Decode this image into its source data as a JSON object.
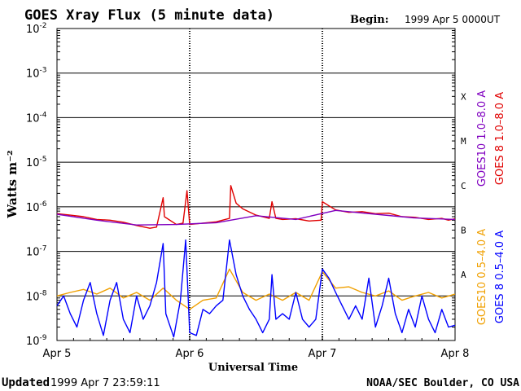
{
  "header": {
    "title": "GOES Xray Flux (5 minute data)",
    "begin_label": "Begin:",
    "begin_value": "1999 Apr 5 0000UT"
  },
  "footer": {
    "updated_label": "Updated",
    "updated_value": "1999 Apr  7 23:59:11",
    "credit": "NOAA/SEC Boulder, CO USA"
  },
  "colors": {
    "goes10_long": "#8000c0",
    "goes8_long": "#e00000",
    "goes10_short": "#f0a000",
    "goes8_short": "#0000ff",
    "axis": "#000000"
  },
  "chart_data": {
    "type": "line",
    "title": "GOES Xray Flux (5 minute data)",
    "xlabel": "Universal Time",
    "ylabel": "Watts m⁻²",
    "yscale": "log",
    "ylim": [
      1e-09,
      0.01
    ],
    "x_ticks": [
      "Apr 5",
      "Apr 6",
      "Apr 7",
      "Apr 8"
    ],
    "y_ticks": [
      {
        "base": "10",
        "exp": "-2",
        "value": 0.01
      },
      {
        "base": "10",
        "exp": "-3",
        "value": 0.001
      },
      {
        "base": "10",
        "exp": "-4",
        "value": 0.0001
      },
      {
        "base": "10",
        "exp": "-5",
        "value": 1e-05
      },
      {
        "base": "10",
        "exp": "-6",
        "value": 1e-06
      },
      {
        "base": "10",
        "exp": "-7",
        "value": 1e-07
      },
      {
        "base": "10",
        "exp": "-8",
        "value": 1e-08
      },
      {
        "base": "10",
        "exp": "-9",
        "value": 1e-09
      }
    ],
    "flare_classes": [
      {
        "label": "X",
        "value": 0.0003
      },
      {
        "label": "M",
        "value": 3e-05
      },
      {
        "label": "C",
        "value": 3e-06
      },
      {
        "label": "B",
        "value": 3e-07
      },
      {
        "label": "A",
        "value": 3e-08
      }
    ],
    "legend": [
      {
        "text": "GOES10 1.0–8.0 A",
        "color": "#8000c0"
      },
      {
        "text": "GOES 8 1.0–8.0 A",
        "color": "#e00000"
      },
      {
        "text": "GOES10 0.5–4.0 A",
        "color": "#f0a000"
      },
      {
        "text": "GOES 8 0.5–4.0 A",
        "color": "#0000ff"
      }
    ],
    "grid": true,
    "x_units": "days since 1999 Apr 5 0000UT",
    "series": [
      {
        "name": "GOES 8 1.0–8.0 A",
        "color": "#e00000",
        "points": [
          [
            0,
            7e-07
          ],
          [
            0.1,
            6.5e-07
          ],
          [
            0.2,
            6e-07
          ],
          [
            0.3,
            5.2e-07
          ],
          [
            0.4,
            5e-07
          ],
          [
            0.5,
            4.5e-07
          ],
          [
            0.6,
            3.8e-07
          ],
          [
            0.7,
            3.3e-07
          ],
          [
            0.75,
            3.5e-07
          ],
          [
            0.8,
            1.6e-06
          ],
          [
            0.81,
            6e-07
          ],
          [
            0.9,
            4e-07
          ],
          [
            0.95,
            4.3e-07
          ],
          [
            0.98,
            2.3e-06
          ],
          [
            1.0,
            4e-07
          ],
          [
            1.1,
            4.3e-07
          ],
          [
            1.2,
            4.6e-07
          ],
          [
            1.3,
            5.5e-07
          ],
          [
            1.31,
            3e-06
          ],
          [
            1.35,
            1.2e-06
          ],
          [
            1.4,
            9e-07
          ],
          [
            1.5,
            6.5e-07
          ],
          [
            1.6,
            5.5e-07
          ],
          [
            1.62,
            1.3e-06
          ],
          [
            1.65,
            5.5e-07
          ],
          [
            1.7,
            5.2e-07
          ],
          [
            1.8,
            5.4e-07
          ],
          [
            1.9,
            4.8e-07
          ],
          [
            1.99,
            5e-07
          ],
          [
            2.0,
            1.3e-06
          ],
          [
            2.05,
            1.05e-06
          ],
          [
            2.1,
            8.5e-07
          ],
          [
            2.2,
            7.5e-07
          ],
          [
            2.3,
            7.8e-07
          ],
          [
            2.4,
            7e-07
          ],
          [
            2.5,
            7.2e-07
          ],
          [
            2.6,
            6e-07
          ],
          [
            2.7,
            5.8e-07
          ],
          [
            2.8,
            5.2e-07
          ],
          [
            2.9,
            5.5e-07
          ],
          [
            2.95,
            5e-07
          ],
          [
            3.0,
            5.4e-07
          ]
        ]
      },
      {
        "name": "GOES10 1.0–8.0 A",
        "color": "#8000c0",
        "points": [
          [
            0,
            6.8e-07
          ],
          [
            0.3,
            5e-07
          ],
          [
            0.6,
            3.9e-07
          ],
          [
            0.9,
            4e-07
          ],
          [
            1.2,
            4.4e-07
          ],
          [
            1.5,
            6.3e-07
          ],
          [
            1.8,
            5.2e-07
          ],
          [
            2.1,
            8.3e-07
          ],
          [
            2.4,
            6.8e-07
          ],
          [
            2.7,
            5.6e-07
          ],
          [
            3.0,
            5.2e-07
          ]
        ]
      },
      {
        "name": "GOES10 0.5–4.0 A",
        "color": "#f0a000",
        "points": [
          [
            0,
            1e-08
          ],
          [
            0.1,
            1.2e-08
          ],
          [
            0.2,
            1.4e-08
          ],
          [
            0.3,
            1.1e-08
          ],
          [
            0.4,
            1.5e-08
          ],
          [
            0.5,
            9e-09
          ],
          [
            0.6,
            1.2e-08
          ],
          [
            0.7,
            8e-09
          ],
          [
            0.8,
            1.5e-08
          ],
          [
            0.9,
            8e-09
          ],
          [
            1.0,
            5e-09
          ],
          [
            1.1,
            8e-09
          ],
          [
            1.2,
            9e-09
          ],
          [
            1.3,
            4e-08
          ],
          [
            1.4,
            1.2e-08
          ],
          [
            1.5,
            8e-09
          ],
          [
            1.6,
            1.1e-08
          ],
          [
            1.7,
            8e-09
          ],
          [
            1.8,
            1.2e-08
          ],
          [
            1.9,
            8e-09
          ],
          [
            2.0,
            3.5e-08
          ],
          [
            2.1,
            1.5e-08
          ],
          [
            2.2,
            1.6e-08
          ],
          [
            2.3,
            1.2e-08
          ],
          [
            2.4,
            1e-08
          ],
          [
            2.5,
            1.3e-08
          ],
          [
            2.6,
            8e-09
          ],
          [
            2.7,
            1e-08
          ],
          [
            2.8,
            1.2e-08
          ],
          [
            2.9,
            9e-09
          ],
          [
            3.0,
            1.1e-08
          ]
        ]
      },
      {
        "name": "GOES 8 0.5–4.0 A",
        "color": "#0000ff",
        "points": [
          [
            0,
            6e-09
          ],
          [
            0.05,
            1e-08
          ],
          [
            0.1,
            4e-09
          ],
          [
            0.15,
            2e-09
          ],
          [
            0.2,
            8e-09
          ],
          [
            0.25,
            2e-08
          ],
          [
            0.3,
            4e-09
          ],
          [
            0.35,
            1.3e-09
          ],
          [
            0.4,
            8e-09
          ],
          [
            0.45,
            2e-08
          ],
          [
            0.5,
            3e-09
          ],
          [
            0.55,
            1.5e-09
          ],
          [
            0.6,
            1e-08
          ],
          [
            0.65,
            3e-09
          ],
          [
            0.7,
            6e-09
          ],
          [
            0.75,
            2e-08
          ],
          [
            0.8,
            1.5e-07
          ],
          [
            0.82,
            4e-09
          ],
          [
            0.88,
            1.2e-09
          ],
          [
            0.93,
            8e-09
          ],
          [
            0.97,
            1.8e-07
          ],
          [
            1.0,
            1.5e-09
          ],
          [
            1.05,
            1.3e-09
          ],
          [
            1.1,
            5e-09
          ],
          [
            1.15,
            4e-09
          ],
          [
            1.2,
            6e-09
          ],
          [
            1.25,
            8e-09
          ],
          [
            1.3,
            1.8e-07
          ],
          [
            1.35,
            3e-08
          ],
          [
            1.4,
            1e-08
          ],
          [
            1.45,
            5e-09
          ],
          [
            1.5,
            3e-09
          ],
          [
            1.55,
            1.5e-09
          ],
          [
            1.6,
            3e-09
          ],
          [
            1.62,
            3e-08
          ],
          [
            1.65,
            3e-09
          ],
          [
            1.7,
            4e-09
          ],
          [
            1.75,
            3e-09
          ],
          [
            1.8,
            1.2e-08
          ],
          [
            1.85,
            3e-09
          ],
          [
            1.9,
            2e-09
          ],
          [
            1.95,
            3e-09
          ],
          [
            2.0,
            4e-08
          ],
          [
            2.05,
            2.5e-08
          ],
          [
            2.1,
            1.2e-08
          ],
          [
            2.15,
            6e-09
          ],
          [
            2.2,
            3e-09
          ],
          [
            2.25,
            6e-09
          ],
          [
            2.3,
            3e-09
          ],
          [
            2.35,
            2.5e-08
          ],
          [
            2.4,
            2e-09
          ],
          [
            2.45,
            6e-09
          ],
          [
            2.5,
            2.5e-08
          ],
          [
            2.55,
            4e-09
          ],
          [
            2.6,
            1.5e-09
          ],
          [
            2.65,
            5e-09
          ],
          [
            2.7,
            2e-09
          ],
          [
            2.75,
            1e-08
          ],
          [
            2.8,
            3e-09
          ],
          [
            2.85,
            1.5e-09
          ],
          [
            2.9,
            5e-09
          ],
          [
            2.95,
            2e-09
          ],
          [
            3.0,
            2.2e-09
          ]
        ]
      }
    ]
  }
}
